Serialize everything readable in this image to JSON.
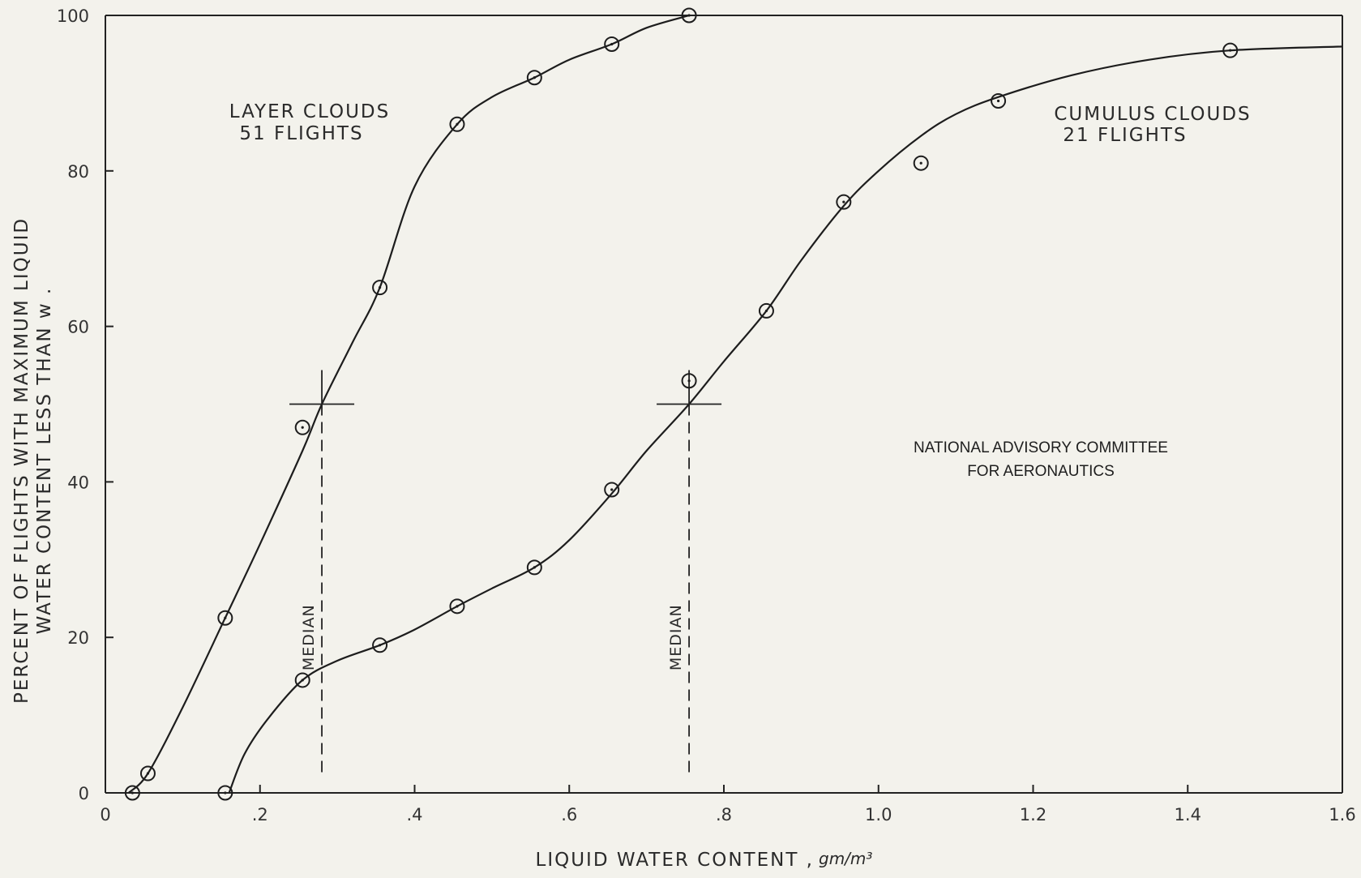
{
  "chart_data": {
    "type": "line",
    "title": "",
    "xlabel": "LIQUID WATER CONTENT ,",
    "xlabel_unit": "gm/m³",
    "ylabel_line1": "PERCENT OF FLIGHTS WITH MAXIMUM LIQUID",
    "ylabel_line2": "WATER CONTENT LESS THAN w .",
    "xlim": [
      0,
      1.6
    ],
    "ylim": [
      0,
      100
    ],
    "x_ticks": [
      {
        "value": 0,
        "label": "0"
      },
      {
        "value": 0.2,
        "label": ".2"
      },
      {
        "value": 0.4,
        "label": ".4"
      },
      {
        "value": 0.6,
        "label": ".6"
      },
      {
        "value": 0.8,
        "label": ".8"
      },
      {
        "value": 1.0,
        "label": "1.0"
      },
      {
        "value": 1.2,
        "label": "1.2"
      },
      {
        "value": 1.4,
        "label": "1.4"
      },
      {
        "value": 1.6,
        "label": "1.6"
      }
    ],
    "y_ticks": [
      {
        "value": 0,
        "label": "0"
      },
      {
        "value": 20,
        "label": "20"
      },
      {
        "value": 40,
        "label": "40"
      },
      {
        "value": 60,
        "label": "60"
      },
      {
        "value": 80,
        "label": "80"
      },
      {
        "value": 100,
        "label": "100"
      }
    ],
    "grid": false,
    "series": [
      {
        "name_line1": "LAYER CLOUDS",
        "name_line2": "51 FLIGHTS",
        "points": [
          {
            "x": 0.035,
            "y": 0
          },
          {
            "x": 0.055,
            "y": 2.5
          },
          {
            "x": 0.155,
            "y": 22.5
          },
          {
            "x": 0.255,
            "y": 47
          },
          {
            "x": 0.355,
            "y": 65
          },
          {
            "x": 0.455,
            "y": 86
          },
          {
            "x": 0.555,
            "y": 92
          },
          {
            "x": 0.655,
            "y": 96.3
          },
          {
            "x": 0.755,
            "y": 100
          }
        ],
        "curve": [
          [
            0.03,
            0
          ],
          [
            0.055,
            2.5
          ],
          [
            0.1,
            11
          ],
          [
            0.155,
            22.5
          ],
          [
            0.2,
            32
          ],
          [
            0.255,
            44
          ],
          [
            0.28,
            50
          ],
          [
            0.32,
            58
          ],
          [
            0.355,
            65
          ],
          [
            0.4,
            78
          ],
          [
            0.455,
            86
          ],
          [
            0.5,
            89.5
          ],
          [
            0.555,
            92
          ],
          [
            0.6,
            94.3
          ],
          [
            0.655,
            96.3
          ],
          [
            0.7,
            98.4
          ],
          [
            0.755,
            100
          ]
        ],
        "median_x": 0.28,
        "median_label": "MEDIAN"
      },
      {
        "name_line1": "CUMULUS CLOUDS",
        "name_line2": "21 FLIGHTS",
        "points": [
          {
            "x": 0.155,
            "y": 0
          },
          {
            "x": 0.255,
            "y": 14.5
          },
          {
            "x": 0.355,
            "y": 19
          },
          {
            "x": 0.455,
            "y": 24
          },
          {
            "x": 0.555,
            "y": 29
          },
          {
            "x": 0.655,
            "y": 39
          },
          {
            "x": 0.755,
            "y": 53
          },
          {
            "x": 0.855,
            "y": 62
          },
          {
            "x": 0.955,
            "y": 76
          },
          {
            "x": 1.055,
            "y": 81
          },
          {
            "x": 1.155,
            "y": 89
          },
          {
            "x": 1.455,
            "y": 95.5
          }
        ],
        "curve": [
          [
            0.16,
            0
          ],
          [
            0.18,
            5
          ],
          [
            0.21,
            9.5
          ],
          [
            0.255,
            14.5
          ],
          [
            0.3,
            17
          ],
          [
            0.355,
            19
          ],
          [
            0.4,
            21
          ],
          [
            0.455,
            24
          ],
          [
            0.5,
            26.3
          ],
          [
            0.555,
            29
          ],
          [
            0.6,
            32.5
          ],
          [
            0.655,
            38.5
          ],
          [
            0.7,
            44
          ],
          [
            0.755,
            50
          ],
          [
            0.8,
            55.5
          ],
          [
            0.855,
            62
          ],
          [
            0.9,
            68.5
          ],
          [
            0.955,
            75.5
          ],
          [
            1.0,
            80
          ],
          [
            1.055,
            84.5
          ],
          [
            1.1,
            87.3
          ],
          [
            1.155,
            89.5
          ],
          [
            1.25,
            92.3
          ],
          [
            1.35,
            94.3
          ],
          [
            1.455,
            95.5
          ],
          [
            1.6,
            96
          ]
        ],
        "median_x": 0.755,
        "median_label": "MEDIAN"
      }
    ],
    "annotation_line1": "NATIONAL ADVISORY COMMITTEE",
    "annotation_line2": "FOR AERONAUTICS"
  }
}
